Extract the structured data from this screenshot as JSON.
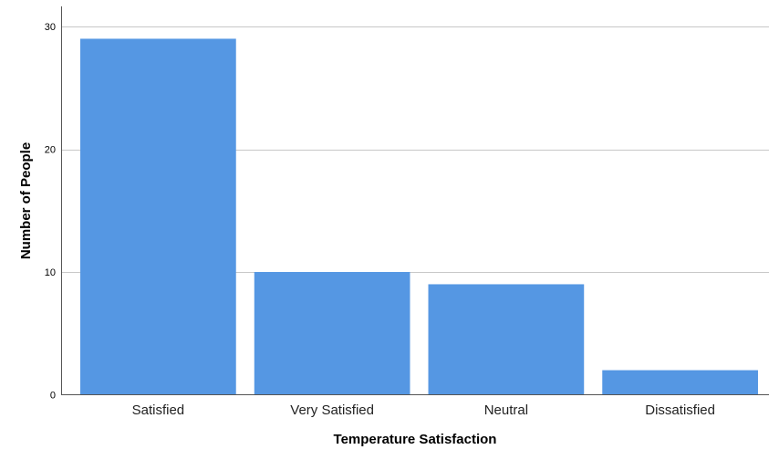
{
  "chart_data": {
    "type": "bar",
    "categories": [
      "Satisfied",
      "Very Satisfied",
      "Neutral",
      "Dissatisfied"
    ],
    "values": [
      29,
      10,
      9,
      2
    ],
    "title": "",
    "xlabel": "Temperature Satisfaction",
    "ylabel": "Number of People",
    "ylim": [
      0,
      30
    ],
    "yticks": [
      0,
      10,
      20,
      30
    ],
    "grid": true,
    "bar_color": "#5597e3"
  }
}
